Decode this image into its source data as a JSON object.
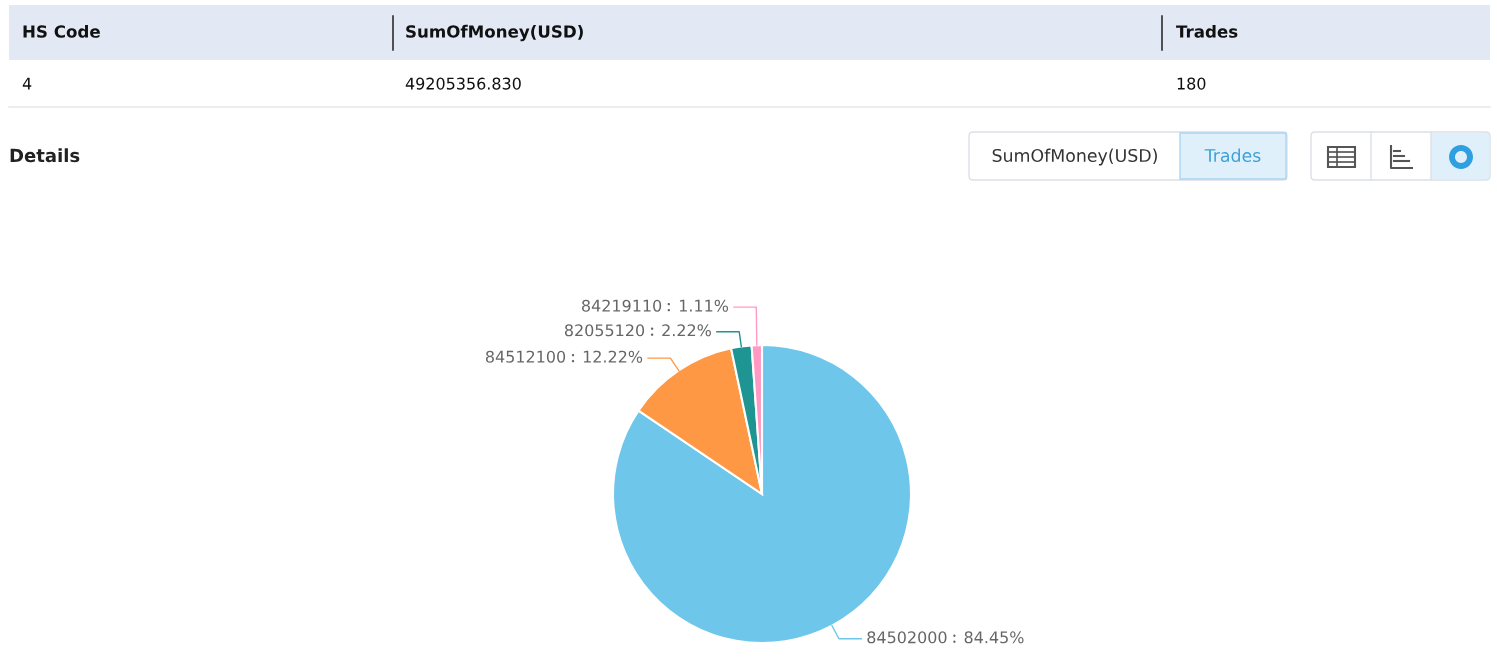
{
  "chart_data": [
    {
      "type": "other",
      "annotations": [
        "HS Code",
        "SumOfMoney(USD)",
        "Trades",
        "4",
        "49205356.830",
        "180",
        "Details"
      ]
    },
    {
      "type": "pie",
      "legend": false,
      "categories": [
        "84502000",
        "84512100",
        "82055120",
        "84219110"
      ],
      "values": [
        84.45,
        12.22,
        2.22,
        1.11
      ],
      "colors": [
        "#6ec6ea",
        "#ff9845",
        "#1e9493",
        "#ff99c3"
      ],
      "value_labels": [
        "84.45%",
        "12.22%",
        "2.22%",
        "1.11%"
      ],
      "annotations": [
        "SumOfMoney(USD)",
        "Trades"
      ]
    }
  ]
}
